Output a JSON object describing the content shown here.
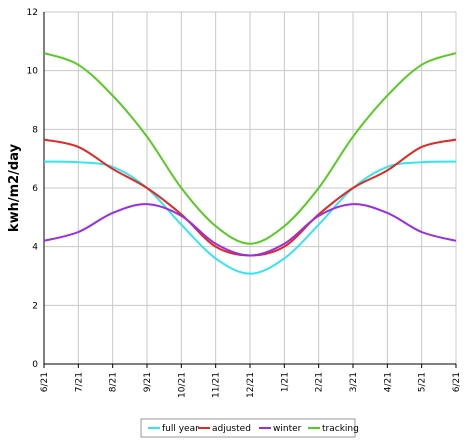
{
  "chart_data": {
    "type": "line",
    "title": "",
    "xlabel": "",
    "ylabel": "kwh/m2/day",
    "ylim": [
      0,
      12
    ],
    "yticks": [
      0,
      2,
      4,
      6,
      8,
      10,
      12
    ],
    "x": [
      "6/21",
      "7/21",
      "8/21",
      "9/21",
      "10/21",
      "11/21",
      "12/21",
      "1/21",
      "2/21",
      "3/21",
      "4/21",
      "5/21",
      "6/21"
    ],
    "grid": true,
    "legend_position": "bottom-center",
    "series": [
      {
        "name": "full year",
        "color": "#33e5f0",
        "values": [
          6.9,
          6.88,
          6.72,
          6.0,
          4.75,
          3.6,
          3.08,
          3.6,
          4.75,
          6.0,
          6.72,
          6.88,
          6.9
        ]
      },
      {
        "name": "adjusted",
        "color": "#e02a22",
        "values": [
          7.65,
          7.4,
          6.65,
          6.0,
          5.1,
          4.0,
          3.7,
          4.0,
          5.1,
          6.0,
          6.6,
          7.4,
          7.65
        ]
      },
      {
        "name": "winter",
        "color": "#9a2ee6",
        "values": [
          4.2,
          4.5,
          5.15,
          5.45,
          5.05,
          4.1,
          3.7,
          4.1,
          5.05,
          5.45,
          5.15,
          4.5,
          4.2
        ]
      },
      {
        "name": "tracking",
        "color": "#55cc22",
        "values": [
          10.6,
          10.2,
          9.15,
          7.75,
          6.0,
          4.7,
          4.1,
          4.7,
          6.0,
          7.75,
          9.15,
          10.2,
          10.6
        ]
      }
    ]
  }
}
